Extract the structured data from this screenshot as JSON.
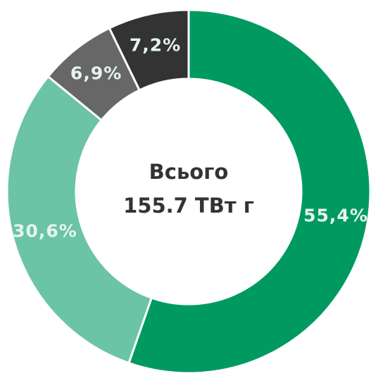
{
  "chart_data": {
    "type": "donut",
    "center_text": [
      "Всього",
      "155.7 ТВт г"
    ],
    "values": [
      55.4,
      30.6,
      6.9,
      7.2
    ],
    "value_labels": [
      "55,4%",
      "30,6%",
      "6,9%",
      "7,2%"
    ],
    "colors": [
      "#009a61",
      "#6bc4a5",
      "#676767",
      "#333333"
    ]
  }
}
